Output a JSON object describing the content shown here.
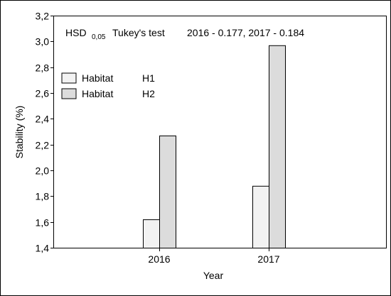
{
  "chart_data": {
    "type": "bar",
    "categories": [
      "2016",
      "2017"
    ],
    "series": [
      {
        "name": "H1",
        "legend_label": "Habitat",
        "values": [
          1.62,
          1.88
        ],
        "color": "#f2f2f2"
      },
      {
        "name": "H2",
        "legend_label": "Habitat",
        "values": [
          2.27,
          2.97
        ],
        "color": "#dcdcdc"
      }
    ],
    "xlabel": "Year",
    "ylabel": "Stability (%)",
    "ylim": [
      1.4,
      3.2
    ],
    "yticks": [
      1.4,
      1.6,
      1.8,
      2.0,
      2.2,
      2.4,
      2.6,
      2.8,
      3.0,
      3.2
    ],
    "ytick_labels": [
      "1,4",
      "1,6",
      "1,8",
      "2,0",
      "2,2",
      "2,4",
      "2,6",
      "2,8",
      "3,0",
      "3,2"
    ],
    "grid": false,
    "legend_position": "top-left",
    "annotation": {
      "hsd_label": "HSD",
      "hsd_subscript": "0,05",
      "test_name": "Tukey's test",
      "values_text": "2016 - 0.177, 2017 - 0.184"
    }
  }
}
